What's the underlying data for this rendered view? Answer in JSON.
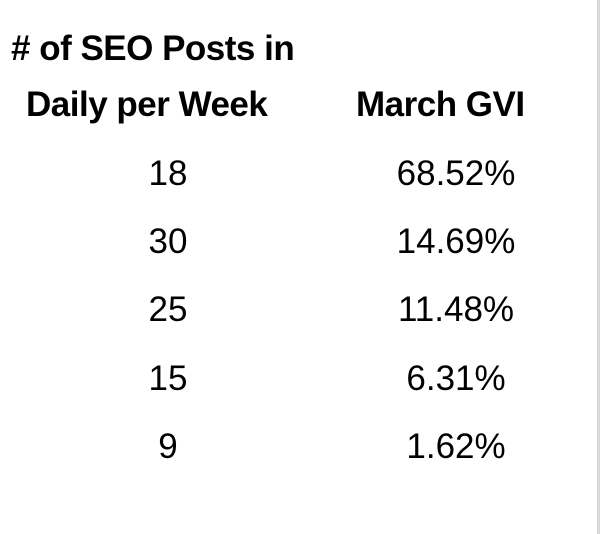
{
  "table": {
    "headers": {
      "col1_line1": "# of SEO Posts in",
      "col1_line2": "Daily per Week",
      "col2": "March GVI"
    },
    "rows": [
      {
        "posts": "18",
        "gvi": "68.52%"
      },
      {
        "posts": "30",
        "gvi": "14.69%"
      },
      {
        "posts": "25",
        "gvi": "11.48%"
      },
      {
        "posts": "15",
        "gvi": "6.31%"
      },
      {
        "posts": "9",
        "gvi": "1.62%"
      }
    ]
  }
}
